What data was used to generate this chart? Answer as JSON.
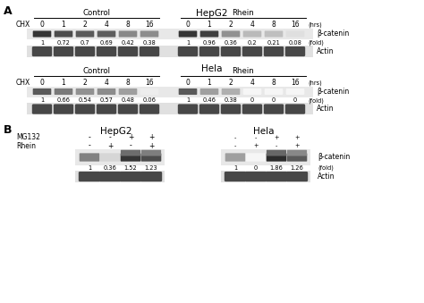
{
  "panel_A_title": "HepG2",
  "panel_A2_title": "Hela",
  "panel_B_hepg2": "HepG2",
  "panel_B_hela": "Hela",
  "control_label": "Control",
  "rhein_label": "Rhein",
  "chx_label": "CHX",
  "hrs_label": "(hrs)",
  "fold_label": "(fold)",
  "beta_catenin_label": "β-catenin",
  "actin_label": "Actin",
  "mg132_label": "MG132",
  "rhein_b_label": "Rhein",
  "chx_timepoints": [
    "0",
    "1",
    "2",
    "4",
    "8",
    "16"
  ],
  "hepg2_control_fold": [
    "1",
    "0.72",
    "0.7",
    "0.69",
    "0.42",
    "0.38"
  ],
  "hepg2_rhein_fold": [
    "1",
    "0.96",
    "0.36",
    "0.2",
    "0.21",
    "0.08"
  ],
  "hepg2_control_intensity": [
    0.88,
    0.78,
    0.72,
    0.7,
    0.52,
    0.5
  ],
  "hepg2_rhein_intensity": [
    0.88,
    0.84,
    0.48,
    0.3,
    0.28,
    0.14
  ],
  "hela_control_fold": [
    "1",
    "0.66",
    "0.54",
    "0.57",
    "0.48",
    "0.06"
  ],
  "hela_rhein_fold": [
    "1",
    "0.46",
    "0.38",
    "0",
    "0",
    "0"
  ],
  "hela_control_intensity": [
    0.72,
    0.58,
    0.48,
    0.5,
    0.42,
    0.08
  ],
  "hela_rhein_intensity": [
    0.72,
    0.42,
    0.35,
    0.04,
    0.04,
    0.04
  ],
  "mg132_signs_hepg2": [
    "-",
    "-",
    "+",
    "+"
  ],
  "rhein_signs_hepg2": [
    "-",
    "+",
    "-",
    "+"
  ],
  "mg132_signs_hela": [
    "-",
    "-",
    "+",
    "+"
  ],
  "rhein_signs_hela": [
    "-",
    "+",
    "-",
    "+"
  ],
  "hepg2_b_fold": [
    "1",
    "0.36",
    "1.52",
    "1.23"
  ],
  "hela_b_fold": [
    "1",
    "0",
    "1.86",
    "1.26"
  ],
  "hepg2_b_intensity": [
    0.55,
    0.18,
    0.88,
    0.78
  ],
  "hela_b_intensity": [
    0.42,
    0.04,
    0.92,
    0.72
  ],
  "bg_color": "#ffffff",
  "text_color": "#000000",
  "band_bg_color": "#d8d8d8",
  "actin_intensity": 0.82
}
